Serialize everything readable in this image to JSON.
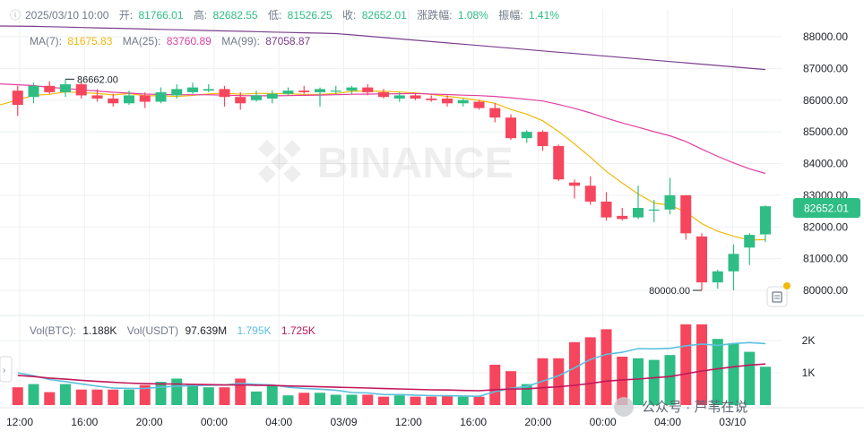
{
  "header": {
    "date": "2025/03/10 10:00",
    "open_label": "开:",
    "open": "81766.01",
    "high_label": "高:",
    "high": "82682.55",
    "low_label": "低:",
    "low": "81526.25",
    "close_label": "收:",
    "close": "82652.01",
    "change_label": "涨跌幅:",
    "change": "1.08%",
    "amp_label": "振幅:",
    "amp": "1.41%"
  },
  "ma": {
    "ma7_label": "MA(7):",
    "ma7": "81675.83",
    "ma25_label": "MA(25):",
    "ma25": "83760.89",
    "ma99_label": "MA(99):",
    "ma99": "87058.87"
  },
  "vol": {
    "btc_label": "Vol(BTC):",
    "btc": "1.188K",
    "usdt_label": "Vol(USDT)",
    "usdt": "97.639M",
    "ma1": "1.795K",
    "ma2": "1.725K"
  },
  "watermark": "BINANCE",
  "wechat": "公众号 · 芦苇在说",
  "colors": {
    "up": "#2ebd85",
    "down": "#f6465d",
    "ma7": "#f0b90b",
    "ma25": "#e040a0",
    "ma99": "#7b3f8c",
    "vma1": "#5bc0de",
    "vma2": "#c2185b",
    "grid": "#eef0f2"
  },
  "chart_data": {
    "type": "candlestick",
    "interval": "2h",
    "price_axis": {
      "ticks": [
        "88000.00",
        "87000.00",
        "86000.00",
        "85000.00",
        "84000.00",
        "83000.00",
        "82000.00",
        "81000.00",
        "80000.00"
      ],
      "range": [
        79500,
        88600
      ]
    },
    "volume_axis": {
      "ticks": [
        "2K",
        "1K"
      ],
      "range": [
        0,
        2600
      ]
    },
    "x_ticks": [
      "12:00",
      "16:00",
      "20:00",
      "00:00",
      "04:00",
      "03/09",
      "12:00",
      "16:00",
      "20:00",
      "00:00",
      "04:00",
      "03/10"
    ],
    "high_marker": "86662.00",
    "low_marker": "80000.00",
    "last_price": "82652.01",
    "candles": [
      {
        "o": 86300,
        "h": 86450,
        "l": 85500,
        "c": 85850,
        "v": 550
      },
      {
        "o": 86100,
        "h": 86550,
        "l": 85900,
        "c": 86450,
        "v": 650
      },
      {
        "o": 86450,
        "h": 86600,
        "l": 86200,
        "c": 86250,
        "v": 400
      },
      {
        "o": 86250,
        "h": 86662,
        "l": 86100,
        "c": 86500,
        "v": 650
      },
      {
        "o": 86500,
        "h": 86600,
        "l": 86050,
        "c": 86150,
        "v": 480
      },
      {
        "o": 86150,
        "h": 86350,
        "l": 85950,
        "c": 86050,
        "v": 480
      },
      {
        "o": 86050,
        "h": 86200,
        "l": 85800,
        "c": 85900,
        "v": 480
      },
      {
        "o": 85900,
        "h": 86300,
        "l": 85850,
        "c": 86150,
        "v": 480
      },
      {
        "o": 86150,
        "h": 86250,
        "l": 85750,
        "c": 85950,
        "v": 620
      },
      {
        "o": 85950,
        "h": 86400,
        "l": 85900,
        "c": 86250,
        "v": 720
      },
      {
        "o": 86150,
        "h": 86500,
        "l": 86050,
        "c": 86350,
        "v": 820
      },
      {
        "o": 86250,
        "h": 86550,
        "l": 86200,
        "c": 86400,
        "v": 620
      },
      {
        "o": 86300,
        "h": 86500,
        "l": 86250,
        "c": 86350,
        "v": 550
      },
      {
        "o": 86350,
        "h": 86450,
        "l": 85800,
        "c": 86100,
        "v": 550
      },
      {
        "o": 86100,
        "h": 86250,
        "l": 85700,
        "c": 85900,
        "v": 820
      },
      {
        "o": 86000,
        "h": 86300,
        "l": 85950,
        "c": 86150,
        "v": 420
      },
      {
        "o": 86050,
        "h": 86300,
        "l": 85900,
        "c": 86200,
        "v": 600
      },
      {
        "o": 86200,
        "h": 86400,
        "l": 86150,
        "c": 86300,
        "v": 300
      },
      {
        "o": 86300,
        "h": 86450,
        "l": 86200,
        "c": 86250,
        "v": 380
      },
      {
        "o": 86250,
        "h": 86400,
        "l": 85800,
        "c": 86350,
        "v": 380
      },
      {
        "o": 86300,
        "h": 86450,
        "l": 86200,
        "c": 86300,
        "v": 320
      },
      {
        "o": 86300,
        "h": 86450,
        "l": 86200,
        "c": 86400,
        "v": 320
      },
      {
        "o": 86400,
        "h": 86500,
        "l": 86150,
        "c": 86250,
        "v": 320
      },
      {
        "o": 86250,
        "h": 86350,
        "l": 86050,
        "c": 86100,
        "v": 260
      },
      {
        "o": 86050,
        "h": 86250,
        "l": 85950,
        "c": 86150,
        "v": 300
      },
      {
        "o": 86150,
        "h": 86200,
        "l": 86000,
        "c": 86050,
        "v": 260
      },
      {
        "o": 86050,
        "h": 86150,
        "l": 85950,
        "c": 86000,
        "v": 260
      },
      {
        "o": 86050,
        "h": 86150,
        "l": 85800,
        "c": 85900,
        "v": 300
      },
      {
        "o": 85900,
        "h": 86050,
        "l": 85800,
        "c": 86000,
        "v": 260
      },
      {
        "o": 85950,
        "h": 86000,
        "l": 85700,
        "c": 85750,
        "v": 260
      },
      {
        "o": 85750,
        "h": 85900,
        "l": 85300,
        "c": 85450,
        "v": 1250
      },
      {
        "o": 85450,
        "h": 85550,
        "l": 84750,
        "c": 84800,
        "v": 1050
      },
      {
        "o": 84800,
        "h": 85050,
        "l": 84650,
        "c": 85000,
        "v": 650
      },
      {
        "o": 85000,
        "h": 85050,
        "l": 84400,
        "c": 84550,
        "v": 1450
      },
      {
        "o": 84550,
        "h": 84600,
        "l": 83450,
        "c": 83500,
        "v": 1450
      },
      {
        "o": 83400,
        "h": 83500,
        "l": 82900,
        "c": 83300,
        "v": 1950
      },
      {
        "o": 83300,
        "h": 83600,
        "l": 82700,
        "c": 82800,
        "v": 2100
      },
      {
        "o": 82800,
        "h": 83100,
        "l": 82200,
        "c": 82300,
        "v": 2350
      },
      {
        "o": 82350,
        "h": 82600,
        "l": 82200,
        "c": 82250,
        "v": 1500
      },
      {
        "o": 82300,
        "h": 83300,
        "l": 82250,
        "c": 82600,
        "v": 1450
      },
      {
        "o": 82550,
        "h": 82850,
        "l": 82150,
        "c": 82550,
        "v": 1400
      },
      {
        "o": 82550,
        "h": 83550,
        "l": 82400,
        "c": 83000,
        "v": 1550
      },
      {
        "o": 83000,
        "h": 83000,
        "l": 81600,
        "c": 81800,
        "v": 2500
      },
      {
        "o": 81700,
        "h": 81800,
        "l": 80000,
        "c": 80250,
        "v": 2500
      },
      {
        "o": 80250,
        "h": 80650,
        "l": 80050,
        "c": 80600,
        "v": 2050
      },
      {
        "o": 80600,
        "h": 81450,
        "l": 80000,
        "c": 81150,
        "v": 1900
      },
      {
        "o": 81350,
        "h": 81800,
        "l": 80800,
        "c": 81750,
        "v": 1650
      },
      {
        "o": 81766,
        "h": 82683,
        "l": 81526,
        "c": 82652,
        "v": 1188
      }
    ]
  }
}
